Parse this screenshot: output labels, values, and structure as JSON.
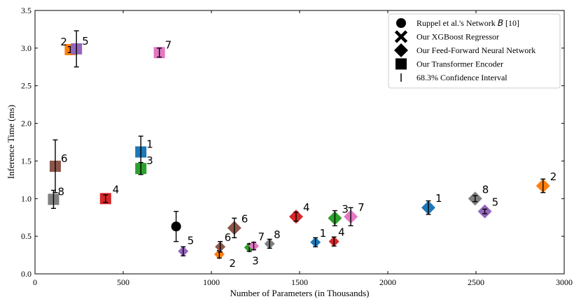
{
  "chart_data": {
    "type": "scatter",
    "xlabel": "Number of Parameters (in Thousands)",
    "ylabel": "Inference Time (ms)",
    "xlim": [
      0,
      3000
    ],
    "ylim": [
      0,
      3.5
    ],
    "xticks": [
      0,
      500,
      1000,
      1500,
      2000,
      2500,
      3000
    ],
    "yticks": [
      0.0,
      0.5,
      1.0,
      1.5,
      2.0,
      2.5,
      3.0,
      3.5
    ],
    "xtick_labels": [
      "0",
      "500",
      "1000",
      "1500",
      "2000",
      "2500",
      "3000"
    ],
    "ytick_labels": [
      "0.0",
      "0.5",
      "1.0",
      "1.5",
      "2.0",
      "2.5",
      "3.0",
      "3.5"
    ],
    "grid": false,
    "legend_position": "top-right",
    "legend": [
      {
        "marker": "circle",
        "label_pre": "Ruppel et al.'s Network ",
        "label_italic": "B",
        "label_post": " [10]"
      },
      {
        "marker": "x",
        "label": "Our XGBoost Regressor"
      },
      {
        "marker": "diamond",
        "label": "Our Feed-Forward Neural Network"
      },
      {
        "marker": "square",
        "label": "Our Transformer Encoder"
      },
      {
        "marker": "errorbar",
        "label": "68.3% Confidence Interval"
      }
    ],
    "palette": {
      "1": "#1f77b4",
      "2": "#ff7f0e",
      "3": "#2ca02c",
      "4": "#d62728",
      "5": "#9467bd",
      "6": "#8c564b",
      "7": "#e377c2",
      "8": "#7f7f7f",
      "baseline": "#000000"
    },
    "series": [
      {
        "name": "Ruppel et al.'s Network B",
        "marker": "circle",
        "points": [
          {
            "x": 800,
            "y": 0.63,
            "err": 0.2
          }
        ]
      },
      {
        "name": "Our Transformer Encoder",
        "marker": "square",
        "points": [
          {
            "label": "1",
            "x": 600,
            "y": 1.62,
            "err": 0.21,
            "color": "1"
          },
          {
            "label": "2",
            "x": 200,
            "y": 2.98,
            "err": 0.04,
            "color": "2"
          },
          {
            "label": "3",
            "x": 600,
            "y": 1.4,
            "err": 0.08,
            "color": "3"
          },
          {
            "label": "4",
            "x": 400,
            "y": 1.0,
            "err": 0.05,
            "color": "4"
          },
          {
            "label": "5",
            "x": 235,
            "y": 2.99,
            "err": 0.24,
            "color": "5"
          },
          {
            "label": "6",
            "x": 115,
            "y": 1.43,
            "err": 0.35,
            "color": "6"
          },
          {
            "label": "7",
            "x": 705,
            "y": 2.94,
            "err": 0.06,
            "color": "7"
          },
          {
            "label": "8",
            "x": 105,
            "y": 0.99,
            "err": 0.12,
            "color": "8"
          }
        ]
      },
      {
        "name": "Our Feed-Forward Neural Network",
        "marker": "diamond",
        "points": [
          {
            "label": "1",
            "x": 2230,
            "y": 0.88,
            "err": 0.09,
            "color": "1"
          },
          {
            "label": "2",
            "x": 2880,
            "y": 1.17,
            "err": 0.09,
            "color": "2"
          },
          {
            "label": "3",
            "x": 1700,
            "y": 0.74,
            "err": 0.1,
            "color": "3"
          },
          {
            "label": "4",
            "x": 1480,
            "y": 0.76,
            "err": 0.06,
            "color": "4"
          },
          {
            "label": "5",
            "x": 2550,
            "y": 0.83,
            "err": 0.03,
            "color": "5"
          },
          {
            "label": "6",
            "x": 1130,
            "y": 0.61,
            "err": 0.13,
            "color": "6"
          },
          {
            "label": "7",
            "x": 1790,
            "y": 0.76,
            "err": 0.12,
            "color": "7"
          },
          {
            "label": "8",
            "x": 2495,
            "y": 1.0,
            "err": 0.04,
            "color": "8"
          }
        ]
      },
      {
        "name": "Our XGBoost Regressor",
        "marker": "diamond-small",
        "points": [
          {
            "label": "1",
            "x": 1590,
            "y": 0.42,
            "err": 0.06,
            "color": "1"
          },
          {
            "label": "2",
            "x": 1045,
            "y": 0.26,
            "err": 0.05,
            "color": "2"
          },
          {
            "label": "3",
            "x": 1215,
            "y": 0.35,
            "err": 0.05,
            "color": "3"
          },
          {
            "label": "4",
            "x": 1695,
            "y": 0.43,
            "err": 0.06,
            "color": "4"
          },
          {
            "label": "5",
            "x": 840,
            "y": 0.3,
            "err": 0.06,
            "color": "5"
          },
          {
            "label": "6",
            "x": 1050,
            "y": 0.36,
            "err": 0.07,
            "color": "6"
          },
          {
            "label": "7",
            "x": 1240,
            "y": 0.37,
            "err": 0.05,
            "color": "7"
          },
          {
            "label": "8",
            "x": 1330,
            "y": 0.4,
            "err": 0.06,
            "color": "8"
          }
        ]
      }
    ]
  }
}
